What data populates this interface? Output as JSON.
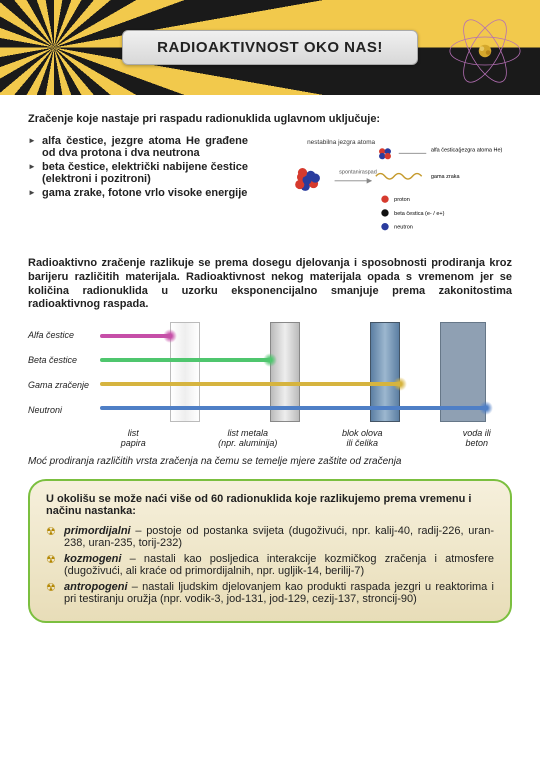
{
  "header": {
    "title": "RADIOAKTIVNOST OKO NAS!"
  },
  "intro": "Zračenje koje nastaje pri raspadu radionuklida uglavnom uključuje:",
  "bullets": [
    "alfa čestice, jezgre atoma He građene od dva protona i dva neutrona",
    "beta čestice, električki nabijene čestice (elektroni i pozitroni)",
    "gama zrake, fotone vrlo visoke energije"
  ],
  "diagram": {
    "labels": {
      "nucleus": "nestabilna jezgra atoma",
      "decay": "spontani\nraspad",
      "alpha": "alfa čestica\n(jezgra atoma He)",
      "gamma": "gama zraka",
      "proton": "proton",
      "beta": "beta čestica (e- / e+)",
      "neutron": "neutron"
    },
    "colors": {
      "proton": "#d63a2e",
      "neutron": "#2a3c9e",
      "beta": "#111",
      "gamma": "#c59a2c"
    }
  },
  "para2": "Radioaktivno zračenje razlikuje se prema dosegu djelovanja i sposobnosti prodiranja kroz barijeru različitih materijala. Radioaktivnost nekog materijala opada s vremenom jer se količina radionuklida u uzorku eksponencijalno smanjuje prema zakonitostima radioaktivnog raspada.",
  "penetration": {
    "rows": [
      "Alfa čestice",
      "Beta čestice",
      "Gama zračenje",
      "Neutroni"
    ],
    "barriers": [
      "list\npapira",
      "list metala\n(npr. aluminija)",
      "blok olova\nili čelika",
      "voda ili\nbeton"
    ],
    "ray_colors": [
      "#c64fa8",
      "#4fc66e",
      "#d6b43f",
      "#4f7fc6"
    ],
    "ray_ends": [
      70,
      170,
      300,
      386
    ]
  },
  "caption": "Moć prodiranja različitih vrsta zračenja na čemu se temelje mjere zaštite od zračenja",
  "box": {
    "intro": "U okolišu se može naći više od 60 radionuklida koje razlikujemo prema vremenu i načinu nastanka:",
    "items": [
      {
        "term": "primordijalni",
        "text": " – postoje od postanka svijeta (dugoživući, npr. kalij-40, radij-226, uran-238, uran-235, torij-232)"
      },
      {
        "term": "kozmogeni",
        "text": " – nastali kao posljedica interakcije kozmičkog zračenja i atmosfere (dugoživući, ali kraće od primordijalnih, npr. ugljik-14, berilij-7)"
      },
      {
        "term": "antropogeni",
        "text": " – nastali ljudskim djelovanjem kao produkti raspada jezgri u reaktorima i pri testiranju oružja (npr. vodik-3, jod-131, jod-129, cezij-137, stroncij-90)"
      }
    ]
  }
}
